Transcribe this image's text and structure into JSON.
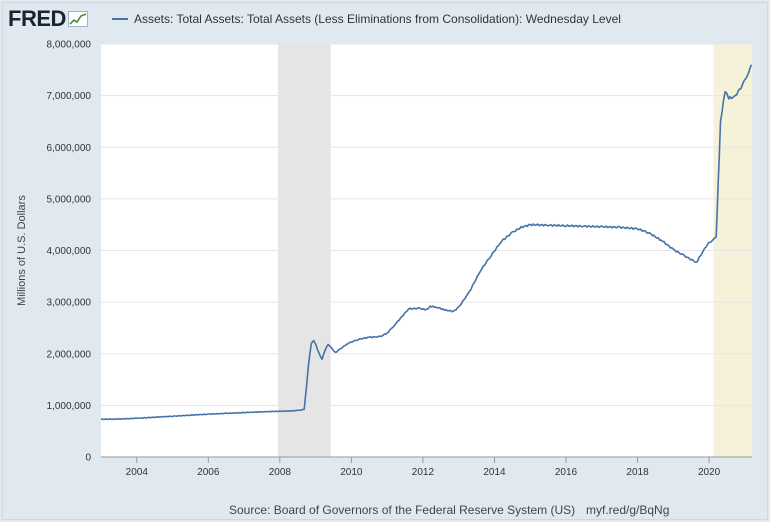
{
  "header": {
    "logo_text": "FRED",
    "legend_label": "Assets: Total Assets: Total Assets (Less Eliminations from Consolidation): Wednesday Level"
  },
  "footer": {
    "source": "Source: Board of Governors of the Federal Reserve System (US)",
    "short_url": "myf.red/g/BqNg"
  },
  "colors": {
    "line": "#4572a7",
    "recession": "#e5e5e5",
    "covid_band": "#f6f2d9",
    "plot_bg": "#ffffff",
    "grid": "#e6e6e6"
  },
  "chart_data": {
    "type": "line",
    "title": "",
    "xlabel": "",
    "ylabel": "Millions of U.S. Dollars",
    "xlim": [
      2003.0,
      2021.2
    ],
    "ylim": [
      0,
      8000000
    ],
    "x_ticks": [
      2004,
      2006,
      2008,
      2010,
      2012,
      2014,
      2016,
      2018,
      2020
    ],
    "y_ticks": [
      0,
      1000000,
      2000000,
      3000000,
      4000000,
      5000000,
      6000000,
      7000000,
      8000000
    ],
    "y_tick_labels": [
      "0",
      "1,000,000",
      "2,000,000",
      "3,000,000",
      "4,000,000",
      "5,000,000",
      "6,000,000",
      "7,000,000",
      "8,000,000"
    ],
    "grid": true,
    "shaded_periods": [
      {
        "start": 2007.95,
        "end": 2009.42,
        "kind": "recession"
      },
      {
        "start": 2020.12,
        "end": 2021.2,
        "kind": "highlight"
      }
    ],
    "series": [
      {
        "name": "Assets: Total Assets: Total Assets (Less Eliminations from Consolidation): Wednesday Level",
        "points": [
          [
            2003.0,
            730000
          ],
          [
            2003.5,
            735000
          ],
          [
            2004.0,
            750000
          ],
          [
            2004.5,
            770000
          ],
          [
            2005.0,
            790000
          ],
          [
            2005.5,
            810000
          ],
          [
            2006.0,
            830000
          ],
          [
            2006.5,
            845000
          ],
          [
            2007.0,
            860000
          ],
          [
            2007.5,
            875000
          ],
          [
            2007.95,
            885000
          ],
          [
            2008.2,
            890000
          ],
          [
            2008.5,
            900000
          ],
          [
            2008.68,
            920000
          ],
          [
            2008.75,
            1400000
          ],
          [
            2008.8,
            1800000
          ],
          [
            2008.88,
            2200000
          ],
          [
            2008.95,
            2250000
          ],
          [
            2009.0,
            2180000
          ],
          [
            2009.1,
            2000000
          ],
          [
            2009.18,
            1900000
          ],
          [
            2009.25,
            2050000
          ],
          [
            2009.35,
            2180000
          ],
          [
            2009.45,
            2100000
          ],
          [
            2009.55,
            2020000
          ],
          [
            2009.7,
            2100000
          ],
          [
            2009.9,
            2200000
          ],
          [
            2010.2,
            2280000
          ],
          [
            2010.5,
            2320000
          ],
          [
            2010.8,
            2330000
          ],
          [
            2011.0,
            2400000
          ],
          [
            2011.2,
            2550000
          ],
          [
            2011.45,
            2750000
          ],
          [
            2011.6,
            2870000
          ],
          [
            2011.9,
            2880000
          ],
          [
            2012.1,
            2850000
          ],
          [
            2012.2,
            2920000
          ],
          [
            2012.4,
            2900000
          ],
          [
            2012.6,
            2850000
          ],
          [
            2012.85,
            2820000
          ],
          [
            2013.0,
            2900000
          ],
          [
            2013.3,
            3200000
          ],
          [
            2013.6,
            3600000
          ],
          [
            2013.9,
            3900000
          ],
          [
            2014.2,
            4180000
          ],
          [
            2014.5,
            4350000
          ],
          [
            2014.75,
            4450000
          ],
          [
            2015.0,
            4500000
          ],
          [
            2015.5,
            4490000
          ],
          [
            2016.0,
            4480000
          ],
          [
            2016.5,
            4470000
          ],
          [
            2017.0,
            4460000
          ],
          [
            2017.5,
            4450000
          ],
          [
            2018.0,
            4420000
          ],
          [
            2018.3,
            4350000
          ],
          [
            2018.7,
            4180000
          ],
          [
            2019.0,
            4020000
          ],
          [
            2019.3,
            3900000
          ],
          [
            2019.65,
            3770000
          ],
          [
            2019.8,
            3950000
          ],
          [
            2019.95,
            4120000
          ],
          [
            2020.1,
            4200000
          ],
          [
            2020.2,
            4250000
          ],
          [
            2020.25,
            5200000
          ],
          [
            2020.32,
            6500000
          ],
          [
            2020.45,
            7100000
          ],
          [
            2020.55,
            6950000
          ],
          [
            2020.7,
            6970000
          ],
          [
            2020.85,
            7100000
          ],
          [
            2021.0,
            7300000
          ],
          [
            2021.1,
            7450000
          ],
          [
            2021.18,
            7600000
          ]
        ]
      }
    ]
  }
}
